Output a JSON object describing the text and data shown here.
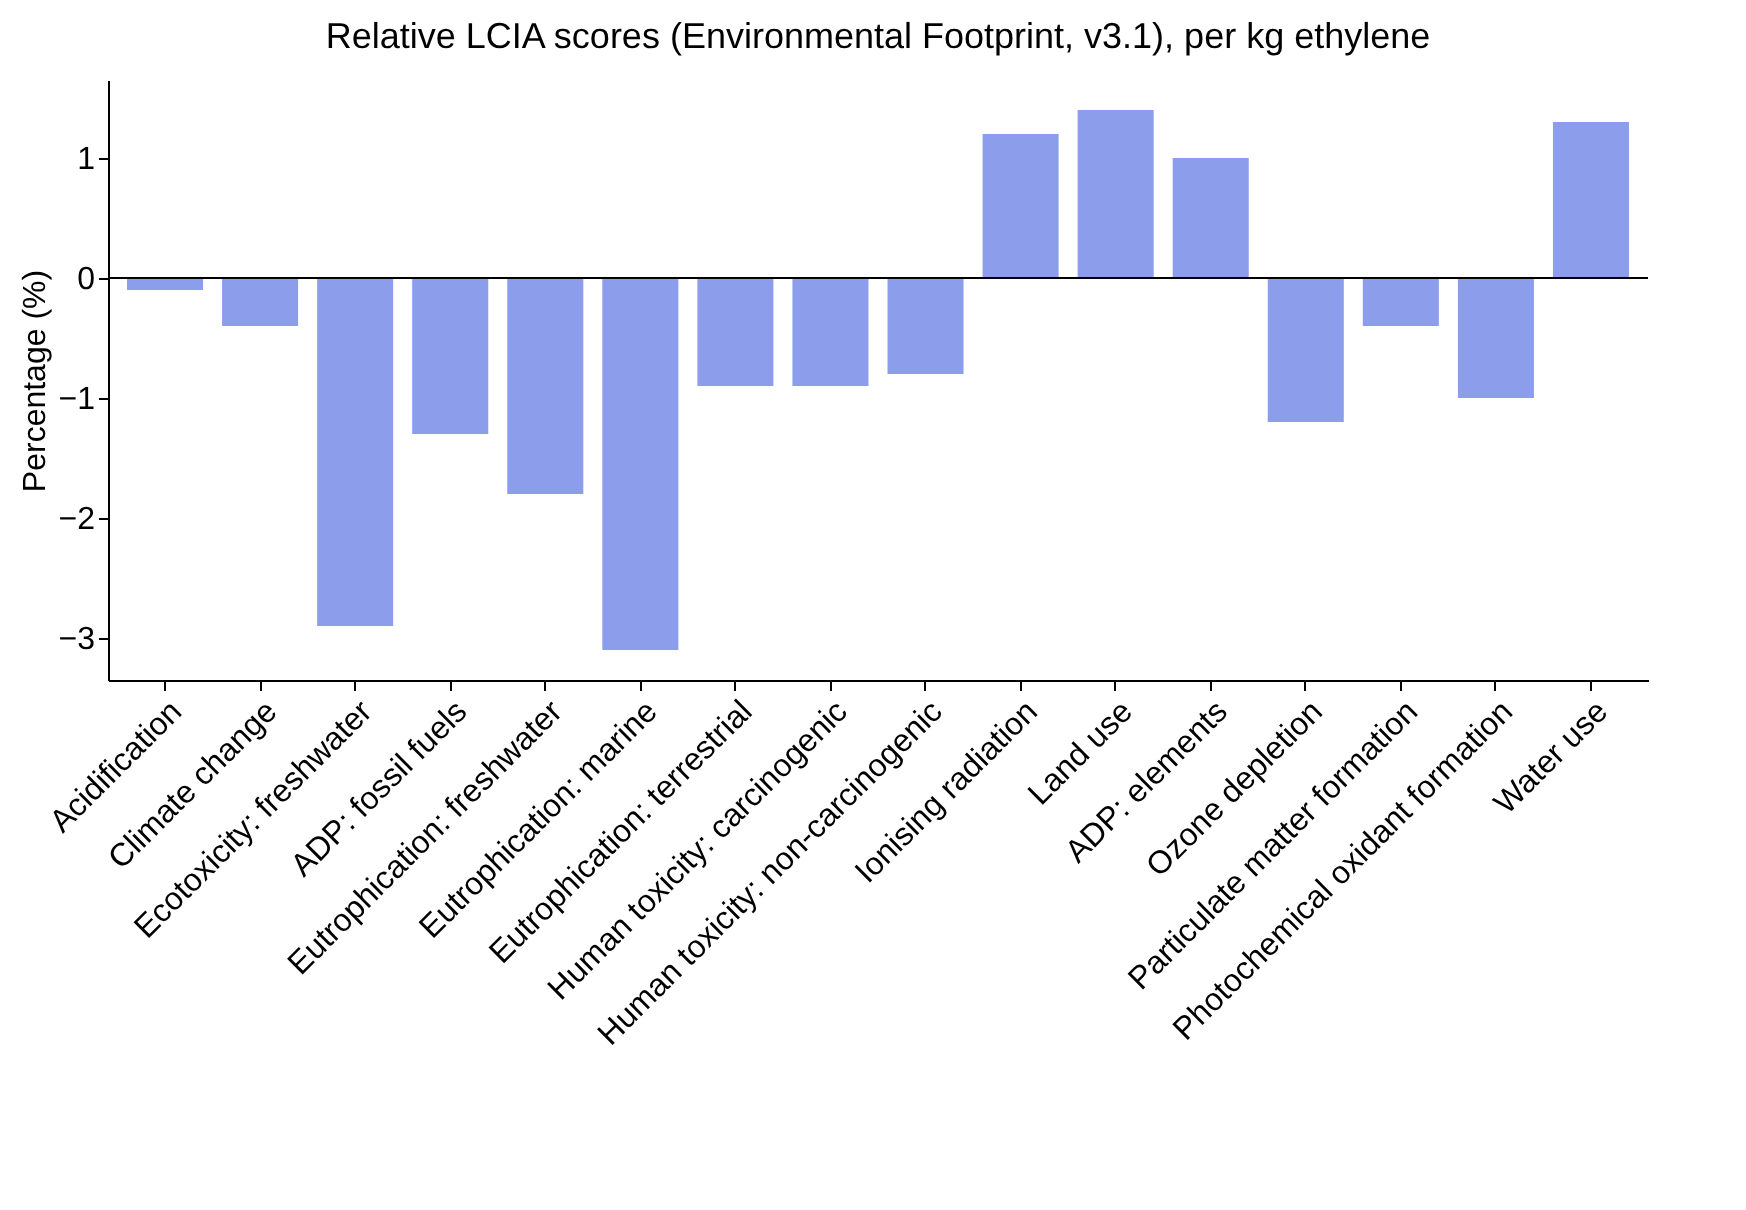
{
  "chart_data": {
    "type": "bar",
    "title": "Relative LCIA scores (Environmental Footprint, v3.1), per kg ethylene",
    "ylabel": "Percentage (%)",
    "categories": [
      "Acidification",
      "Climate change",
      "Ecotoxicity: freshwater",
      "ADP: fossil fuels",
      "Eutrophication: freshwater",
      "Eutrophication: marine",
      "Eutrophication: terrestrial",
      "Human toxicity: carcinogenic",
      "Human toxicity: non-carcinogenic",
      "Ionising radiation",
      "Land use",
      "ADP: elements",
      "Ozone depletion",
      "Particulate matter formation",
      "Photochemical oxidant formation",
      "Water use"
    ],
    "values": [
      -0.1,
      -0.4,
      -2.9,
      -1.3,
      -1.8,
      -3.1,
      -0.9,
      -0.9,
      -0.8,
      1.2,
      1.4,
      1.0,
      -1.2,
      -0.4,
      -1.0,
      1.3
    ],
    "color": "#8c9deb",
    "ylim": [
      -3.35,
      1.65
    ],
    "yticks": [
      -3,
      -2,
      -1,
      0,
      1
    ],
    "grid": false,
    "ref_lines": [
      {
        "axis": "y",
        "value": 0,
        "color": "#000000"
      }
    ]
  }
}
